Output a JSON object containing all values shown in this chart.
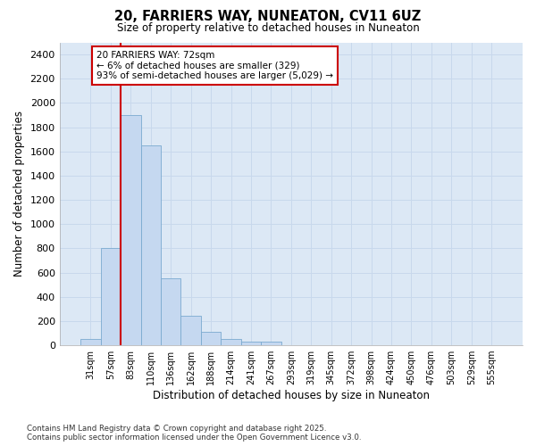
{
  "title_line1": "20, FARRIERS WAY, NUNEATON, CV11 6UZ",
  "title_line2": "Size of property relative to detached houses in Nuneaton",
  "xlabel": "Distribution of detached houses by size in Nuneaton",
  "ylabel": "Number of detached properties",
  "categories": [
    "31sqm",
    "57sqm",
    "83sqm",
    "110sqm",
    "136sqm",
    "162sqm",
    "188sqm",
    "214sqm",
    "241sqm",
    "267sqm",
    "293sqm",
    "319sqm",
    "345sqm",
    "372sqm",
    "398sqm",
    "424sqm",
    "450sqm",
    "476sqm",
    "503sqm",
    "529sqm",
    "555sqm"
  ],
  "values": [
    50,
    800,
    1900,
    1650,
    550,
    240,
    110,
    50,
    30,
    30,
    0,
    0,
    0,
    0,
    0,
    0,
    0,
    0,
    0,
    0,
    0
  ],
  "bar_color": "#c5d8f0",
  "bar_edge_color": "#7aaad0",
  "vline_x": 1.5,
  "vline_color": "#cc0000",
  "annotation_text": "20 FARRIERS WAY: 72sqm\n← 6% of detached houses are smaller (329)\n93% of semi-detached houses are larger (5,029) →",
  "annotation_box_facecolor": "#ffffff",
  "annotation_box_edgecolor": "#cc0000",
  "ylim": [
    0,
    2500
  ],
  "yticks": [
    0,
    200,
    400,
    600,
    800,
    1000,
    1200,
    1400,
    1600,
    1800,
    2000,
    2200,
    2400
  ],
  "grid_color": "#c8d8ec",
  "plot_bg_color": "#dce8f5",
  "fig_bg_color": "#ffffff",
  "footnote_line1": "Contains HM Land Registry data © Crown copyright and database right 2025.",
  "footnote_line2": "Contains public sector information licensed under the Open Government Licence v3.0."
}
